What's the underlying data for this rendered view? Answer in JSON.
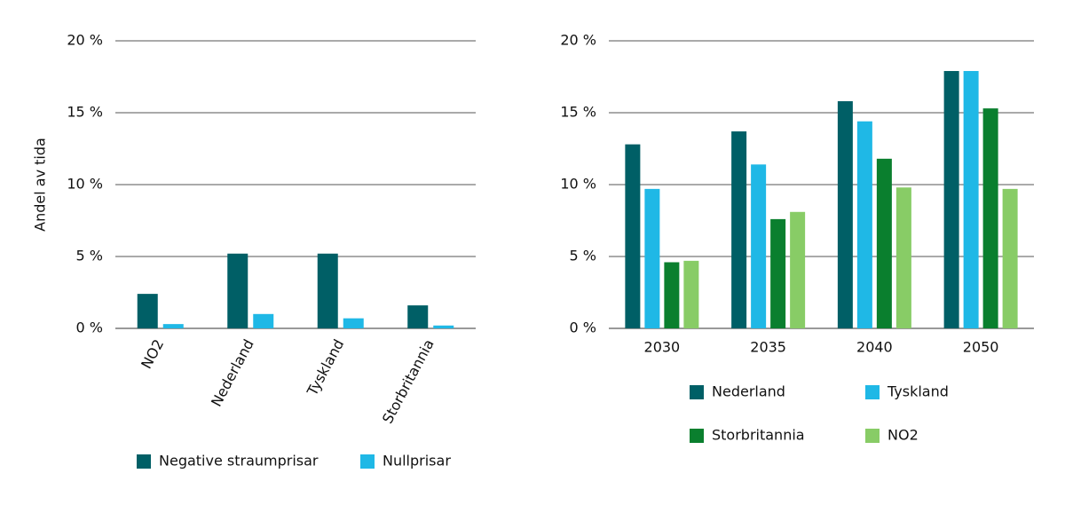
{
  "chart_data": [
    {
      "type": "bar",
      "y_label": "Andel av tida",
      "categories": [
        "NO2",
        "Nederland",
        "Tyskland",
        "Storbritannia"
      ],
      "series": [
        {
          "name": "Negative straumprisar",
          "color": "#005f66",
          "values": [
            2.4,
            5.2,
            5.2,
            1.6
          ]
        },
        {
          "name": "Nullprisar",
          "color": "#1fb8e6",
          "values": [
            0.3,
            1.0,
            0.7,
            0.2
          ]
        }
      ],
      "ylim": [
        0,
        20
      ],
      "yticks": [
        {
          "value": 0,
          "label": "0 %"
        },
        {
          "value": 5,
          "label": "5 %"
        },
        {
          "value": 10,
          "label": "10 %"
        },
        {
          "value": 15,
          "label": "15 %"
        },
        {
          "value": 20,
          "label": "20 %"
        }
      ],
      "grid": true
    },
    {
      "type": "bar",
      "categories": [
        "2030",
        "2035",
        "2040",
        "2050"
      ],
      "series": [
        {
          "name": "Nederland",
          "color": "#005f66",
          "values": [
            12.8,
            13.7,
            15.8,
            17.9
          ]
        },
        {
          "name": "Tyskland",
          "color": "#1fb8e6",
          "values": [
            9.7,
            11.4,
            14.4,
            17.9
          ]
        },
        {
          "name": "Storbritannia",
          "color": "#0a7f2e",
          "values": [
            4.6,
            7.6,
            11.8,
            15.3
          ]
        },
        {
          "name": "NO2",
          "color": "#88cc66",
          "values": [
            4.7,
            8.1,
            9.8,
            9.7
          ]
        }
      ],
      "ylim": [
        0,
        20
      ],
      "yticks": [
        {
          "value": 0,
          "label": "0 %"
        },
        {
          "value": 5,
          "label": "5 %"
        },
        {
          "value": 10,
          "label": "10 %"
        },
        {
          "value": 15,
          "label": "15 %"
        },
        {
          "value": 20,
          "label": "20 %"
        }
      ],
      "grid": true
    }
  ]
}
